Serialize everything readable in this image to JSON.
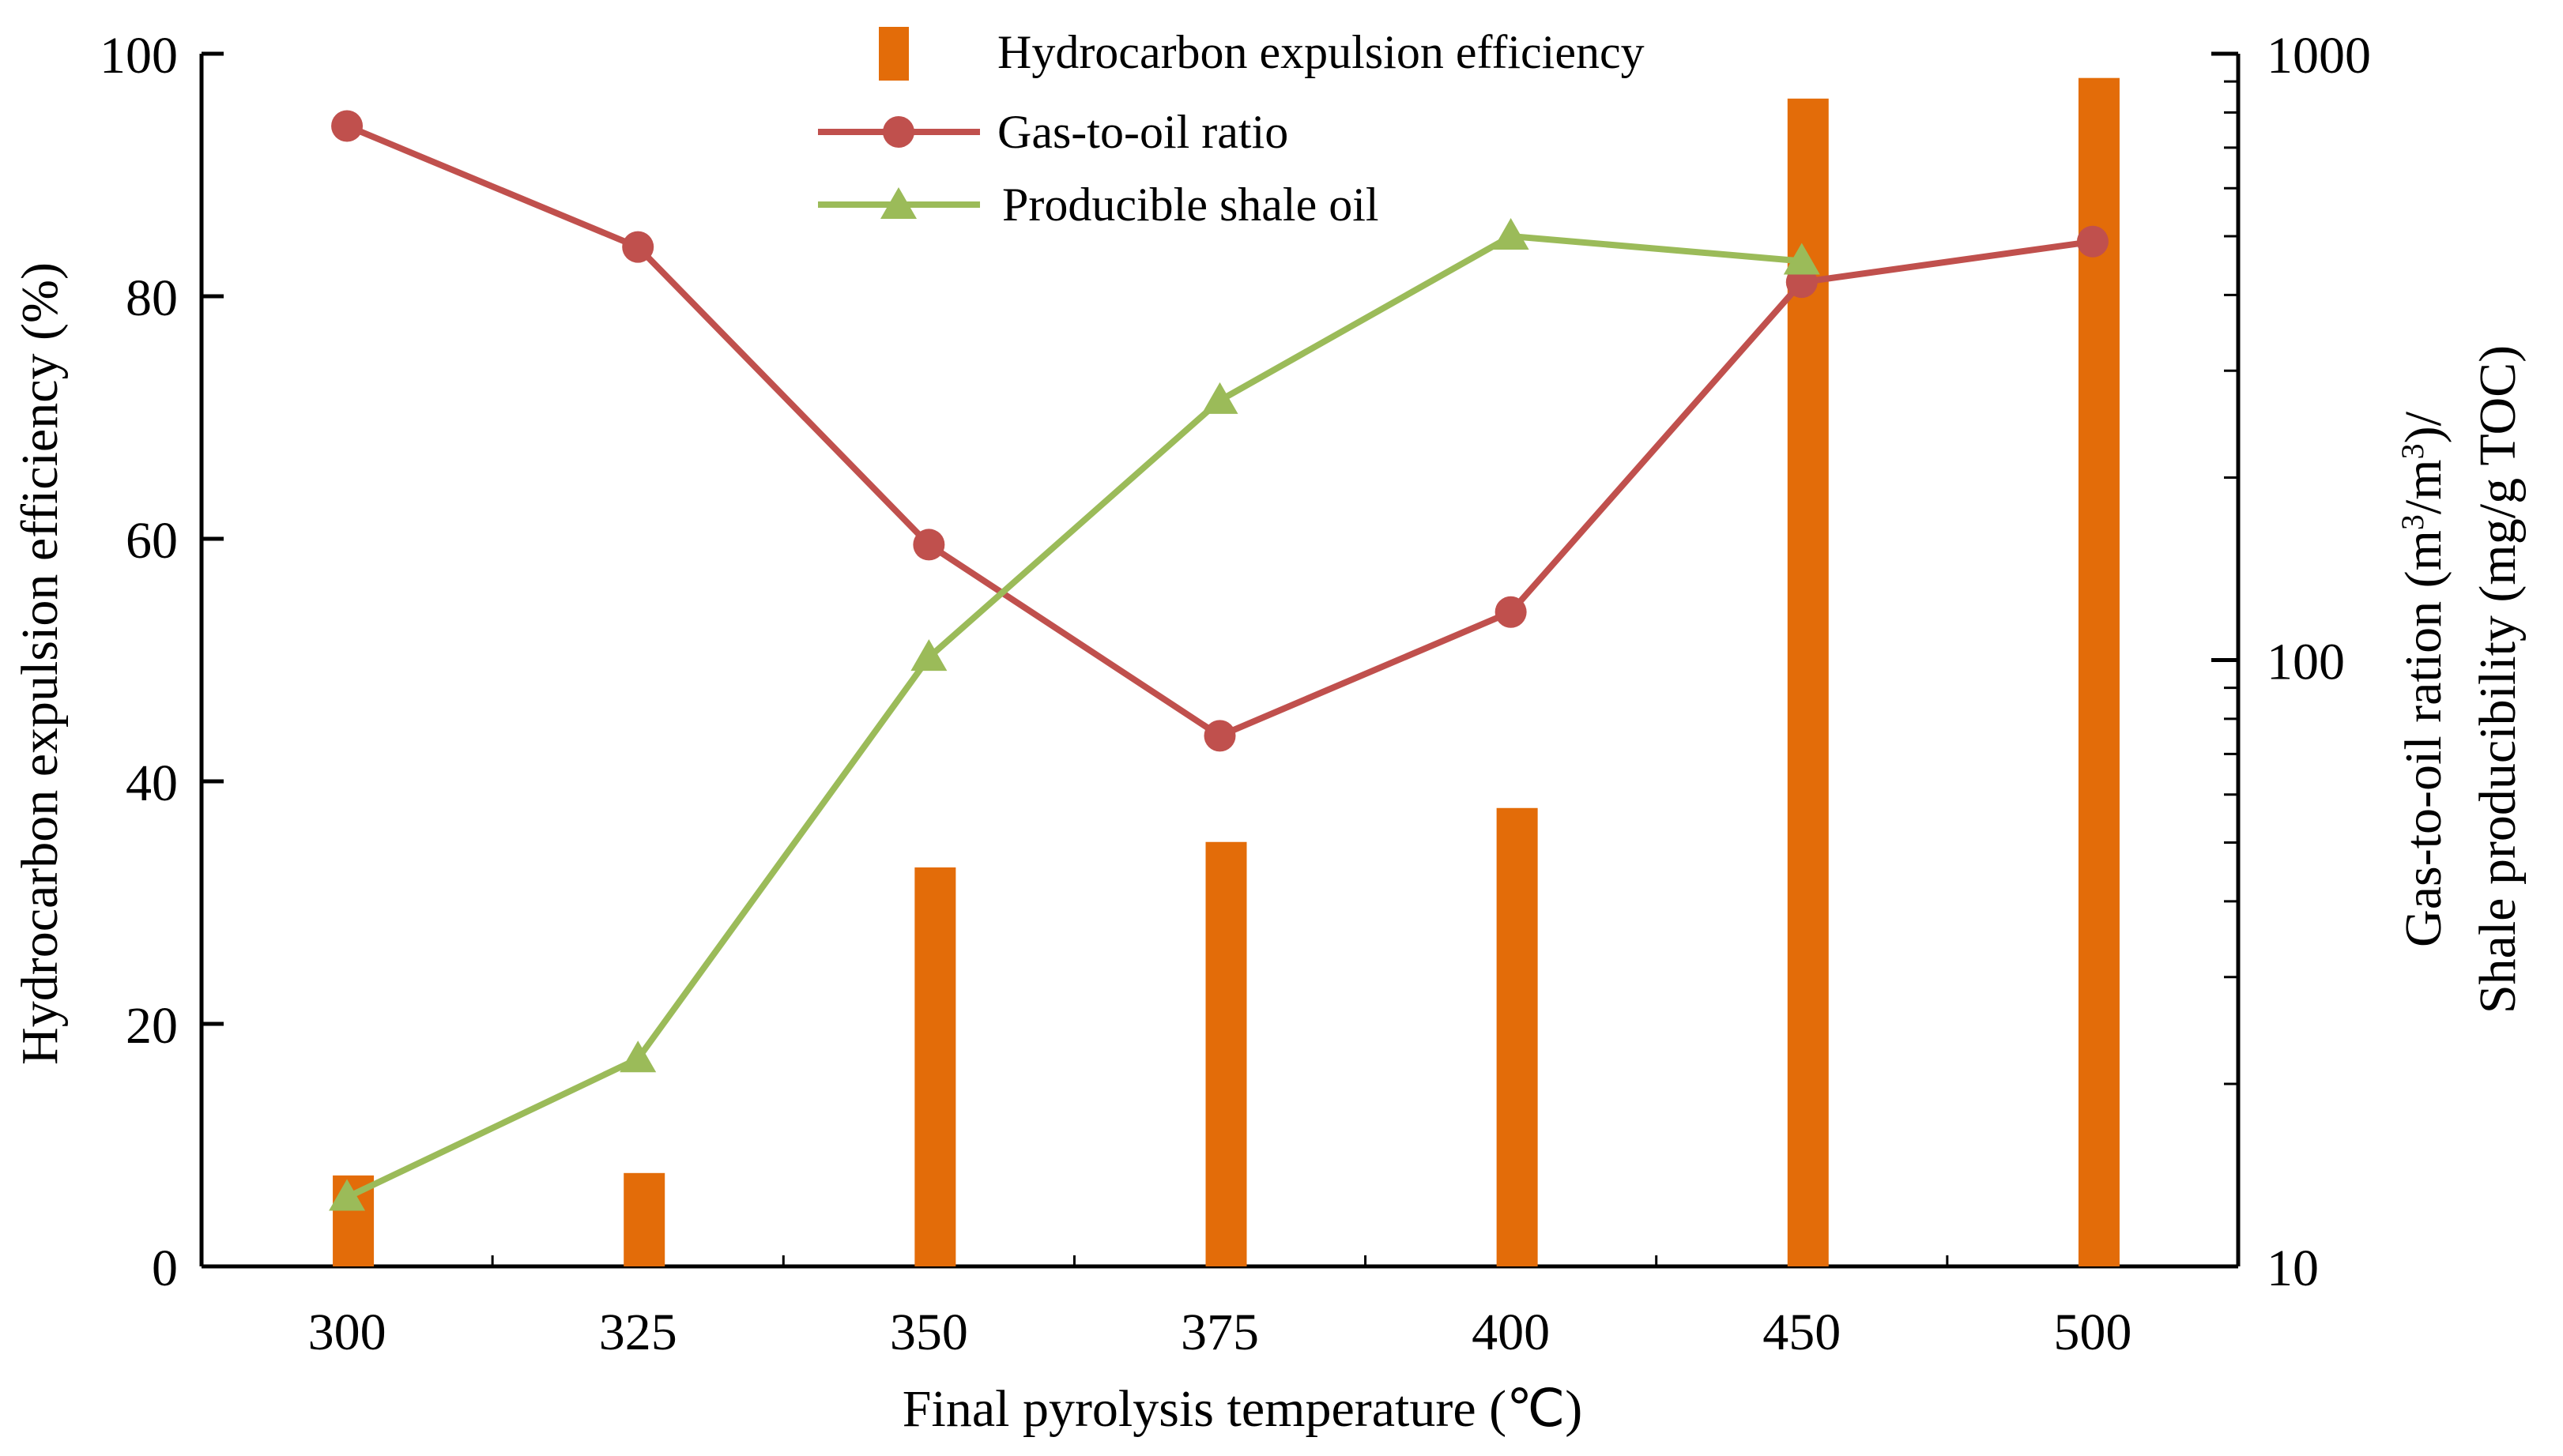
{
  "chart_data": {
    "type": "bar+line",
    "categories": [
      "300",
      "325",
      "350",
      "375",
      "400",
      "450",
      "500"
    ],
    "xlabel": "Final pyrolysis temperature (℃)",
    "ylabel_left": "Hydrocarbon expulsion efficiency (%)",
    "ylabel_right_line1": "Gas-to-oil ration (m",
    "ylabel_right_sup1": "3",
    "ylabel_right_mid": "/m",
    "ylabel_right_sup2": "3",
    "ylabel_right_end": ")/",
    "ylabel_right_line2": "Shale producibility (mg/g TOC)",
    "y_left": {
      "min": 0,
      "max": 100,
      "ticks": [
        "0",
        "20",
        "40",
        "60",
        "80",
        "100"
      ]
    },
    "y_right": {
      "scale": "log",
      "min": 10,
      "max": 1000,
      "ticks": [
        "10",
        "100",
        "1000"
      ]
    },
    "legend_position": "top-center",
    "series": [
      {
        "name": "Hydrocarbon expulsion efficiency",
        "kind": "bar",
        "axis": "left",
        "color": "#E36C09",
        "values": [
          7.5,
          7.7,
          32.9,
          35.0,
          37.8,
          96.3,
          98.0
        ]
      },
      {
        "name": "Gas-to-oil ratio",
        "kind": "line",
        "marker": "circle",
        "axis": "right",
        "color": "#C0504D",
        "values": [
          760,
          480,
          155,
          75,
          120,
          420,
          490
        ]
      },
      {
        "name": "Producible shale oil",
        "kind": "line",
        "marker": "triangle",
        "axis": "right",
        "color": "#9BBB59",
        "values": [
          13,
          22,
          101,
          268,
          500,
          455,
          null
        ]
      }
    ]
  }
}
